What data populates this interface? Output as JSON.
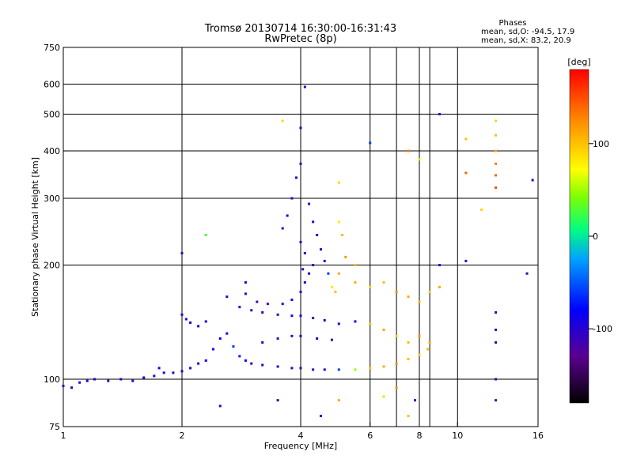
{
  "chart_data": {
    "type": "scatter",
    "title": "Tromsø 20130714 16:30:00-16:31:43",
    "subtitle": "RwPretec (8p)",
    "stats": {
      "heading": "Phases",
      "line_o": "mean, sd,O: -94.5, 17.9",
      "line_x": "mean, sd,X:  83.2, 20.9"
    },
    "xlabel": "Frequency [MHz]",
    "ylabel": "Stationary phase Virtual Height [km]",
    "x_scale": "log",
    "y_scale": "log",
    "xlim": [
      1,
      16
    ],
    "ylim": [
      75,
      750
    ],
    "x_ticks": [
      1,
      2,
      4,
      6,
      8,
      10,
      16
    ],
    "x_tick_labels": [
      "1",
      "2",
      "4",
      "6",
      "8",
      "10",
      "16"
    ],
    "x_grid": [
      2,
      4,
      6,
      7,
      8,
      8.5,
      10
    ],
    "y_ticks": [
      75,
      100,
      200,
      300,
      400,
      500,
      600,
      750
    ],
    "y_tick_labels": [
      "75",
      "100",
      "200",
      "300",
      "400",
      "500",
      "600",
      "750"
    ],
    "grid": true,
    "colorbar": {
      "label": "[deg]",
      "range": [
        -180,
        180
      ],
      "ticks": [
        100,
        0,
        -100
      ],
      "tick_labels": [
        "100",
        "0",
        "-100"
      ],
      "colors": [
        "#000000",
        "#6a0090",
        "#0000ff",
        "#00e0ff",
        "#00ff00",
        "#ffff00",
        "#ff8800",
        "#ff0000"
      ]
    },
    "series": [
      {
        "values": [
          [
            1.0,
            96,
            -105
          ],
          [
            1.05,
            95,
            -100
          ],
          [
            1.1,
            98,
            -95
          ],
          [
            1.15,
            99,
            -100
          ],
          [
            1.2,
            100,
            -98
          ],
          [
            1.3,
            99,
            -100
          ],
          [
            1.4,
            100,
            -95
          ],
          [
            1.5,
            99,
            -98
          ],
          [
            1.6,
            101,
            -96
          ],
          [
            1.7,
            102,
            -100
          ],
          [
            1.75,
            107,
            -85
          ],
          [
            1.8,
            104,
            -100
          ],
          [
            1.9,
            104,
            -98
          ],
          [
            2.0,
            105,
            -95
          ],
          [
            2.1,
            107,
            -100
          ],
          [
            2.2,
            110,
            -90
          ],
          [
            2.3,
            112,
            -85
          ],
          [
            2.4,
            120,
            -80
          ],
          [
            2.5,
            128,
            -85
          ],
          [
            2.6,
            132,
            -90
          ]
        ]
      },
      {
        "values": [
          [
            2.0,
            148,
            -95
          ],
          [
            2.05,
            144,
            -100
          ],
          [
            2.1,
            141,
            -90
          ],
          [
            2.2,
            138,
            -95
          ],
          [
            2.3,
            142,
            -92
          ]
        ]
      },
      {
        "values": [
          [
            2.7,
            122,
            -60
          ],
          [
            2.8,
            115,
            -70
          ],
          [
            2.9,
            112,
            -80
          ],
          [
            3.0,
            110,
            -100
          ],
          [
            3.2,
            109,
            -110
          ],
          [
            3.5,
            108,
            -100
          ],
          [
            3.8,
            107,
            -105
          ],
          [
            4.0,
            107,
            -110
          ],
          [
            4.3,
            106,
            -100
          ],
          [
            4.6,
            106,
            -95
          ],
          [
            5.0,
            106,
            -60
          ],
          [
            5.5,
            106,
            50
          ],
          [
            6.0,
            107,
            100
          ],
          [
            6.5,
            108,
            110
          ],
          [
            7.0,
            110,
            120
          ],
          [
            7.5,
            113,
            100
          ],
          [
            8.0,
            116,
            90
          ],
          [
            8.4,
            120,
            100
          ]
        ]
      },
      {
        "values": [
          [
            2.8,
            155,
            -100
          ],
          [
            3.0,
            152,
            -110
          ],
          [
            3.2,
            150,
            -120
          ],
          [
            3.5,
            148,
            -110
          ],
          [
            3.8,
            147,
            -100
          ],
          [
            4.0,
            147,
            -105
          ],
          [
            4.3,
            145,
            -110
          ],
          [
            4.6,
            143,
            -100
          ],
          [
            5.0,
            140,
            -90
          ],
          [
            5.5,
            142,
            -80
          ]
        ]
      },
      {
        "values": [
          [
            2.9,
            168,
            -110
          ],
          [
            3.1,
            160,
            -120
          ],
          [
            3.3,
            158,
            -110
          ],
          [
            3.6,
            158,
            -105
          ],
          [
            3.8,
            162,
            -100
          ],
          [
            4.0,
            170,
            -100
          ],
          [
            4.1,
            180,
            -105
          ],
          [
            4.2,
            190,
            -95
          ],
          [
            4.3,
            200,
            -100
          ]
        ]
      },
      {
        "values": [
          [
            3.2,
            125,
            -110
          ],
          [
            3.5,
            128,
            -120
          ],
          [
            3.8,
            130,
            -110
          ],
          [
            4.0,
            130,
            -100
          ],
          [
            4.4,
            128,
            -95
          ],
          [
            4.8,
            127,
            -100
          ]
        ]
      },
      {
        "values": [
          [
            3.6,
            250,
            -110
          ],
          [
            3.7,
            270,
            -100
          ],
          [
            3.8,
            300,
            -105
          ],
          [
            3.9,
            340,
            -110
          ],
          [
            4.0,
            370,
            -100
          ],
          [
            4.0,
            230,
            -100
          ],
          [
            4.1,
            215,
            -95
          ],
          [
            4.05,
            195,
            -100
          ]
        ]
      },
      {
        "values": [
          [
            4.2,
            290,
            -100
          ],
          [
            4.3,
            260,
            -100
          ],
          [
            4.4,
            240,
            -95
          ],
          [
            4.5,
            220,
            -100
          ],
          [
            4.6,
            205,
            -90
          ],
          [
            4.7,
            190,
            -60
          ],
          [
            4.8,
            175,
            80
          ],
          [
            4.9,
            170,
            100
          ],
          [
            5.0,
            190,
            110
          ],
          [
            5.0,
            260,
            80
          ],
          [
            5.1,
            240,
            100
          ],
          [
            5.2,
            210,
            120
          ]
        ]
      },
      {
        "values": [
          [
            5.5,
            180,
            110
          ],
          [
            6.0,
            175,
            90
          ],
          [
            6.5,
            180,
            100
          ],
          [
            7.0,
            170,
            120
          ],
          [
            7.5,
            165,
            110
          ],
          [
            8.0,
            160,
            100
          ],
          [
            8.5,
            170,
            90
          ],
          [
            9.0,
            175,
            110
          ]
        ]
      },
      {
        "values": [
          [
            6.0,
            140,
            100
          ],
          [
            6.5,
            135,
            110
          ],
          [
            7.0,
            130,
            90
          ],
          [
            7.5,
            125,
            100
          ],
          [
            8.0,
            130,
            120
          ],
          [
            8.5,
            125,
            110
          ]
        ]
      },
      {
        "values": [
          [
            12.5,
            480,
            90
          ],
          [
            12.5,
            440,
            100
          ],
          [
            12.5,
            400,
            110
          ],
          [
            12.5,
            370,
            130
          ],
          [
            12.5,
            345,
            140
          ],
          [
            12.5,
            320,
            150
          ],
          [
            12.5,
            150,
            -110
          ],
          [
            12.5,
            135,
            -100
          ],
          [
            12.5,
            125,
            -110
          ],
          [
            12.5,
            100,
            -100
          ],
          [
            12.5,
            88,
            -110
          ]
        ]
      },
      {
        "values": [
          [
            4.1,
            590,
            -100
          ],
          [
            3.6,
            480,
            90
          ],
          [
            4.0,
            460,
            -95
          ],
          [
            7.5,
            400,
            130
          ],
          [
            9.0,
            500,
            -110
          ],
          [
            10.5,
            430,
            100
          ],
          [
            8.0,
            380,
            60
          ],
          [
            10.5,
            350,
            140
          ],
          [
            15.5,
            335,
            -100
          ],
          [
            15.0,
            190,
            -110
          ],
          [
            11.5,
            280,
            90
          ],
          [
            9.0,
            200,
            -100
          ],
          [
            10.5,
            205,
            -110
          ],
          [
            2.5,
            85,
            -100
          ],
          [
            4.5,
            80,
            -100
          ],
          [
            5.0,
            88,
            110
          ],
          [
            6.5,
            90,
            90
          ],
          [
            7.5,
            80,
            100
          ],
          [
            7.0,
            95,
            120
          ],
          [
            7.8,
            88,
            -110
          ],
          [
            3.5,
            88,
            -110
          ],
          [
            2.9,
            180,
            -100
          ],
          [
            2.6,
            165,
            -95
          ],
          [
            2.3,
            240,
            30
          ],
          [
            2.0,
            215,
            -110
          ],
          [
            5.5,
            200,
            100
          ],
          [
            5.0,
            330,
            90
          ],
          [
            6.0,
            420,
            -60
          ]
        ]
      }
    ]
  }
}
